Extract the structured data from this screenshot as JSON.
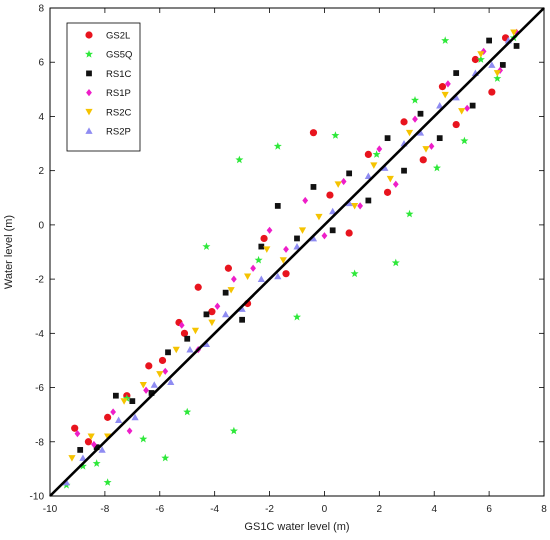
{
  "chart_data": {
    "type": "scatter",
    "title": "",
    "xlabel": "GS1C water level (m)",
    "ylabel": "Water level (m)",
    "xlim": [
      -10,
      8
    ],
    "ylim": [
      -10,
      8
    ],
    "xticks": [
      -10,
      -8,
      -6,
      -4,
      -2,
      0,
      2,
      4,
      6,
      8
    ],
    "yticks": [
      -10,
      -8,
      -6,
      -4,
      -2,
      0,
      2,
      4,
      6,
      8
    ],
    "grid": false,
    "legend_position": "top-left",
    "reference_line": {
      "type": "identity",
      "color": "#000000"
    },
    "series": [
      {
        "name": "GS2L",
        "marker": "circle",
        "color": "#e8141e",
        "points": [
          [
            -9.1,
            -7.5
          ],
          [
            -8.6,
            -8.0
          ],
          [
            -7.9,
            -7.1
          ],
          [
            -7.2,
            -6.3
          ],
          [
            -6.4,
            -5.2
          ],
          [
            -5.9,
            -5.0
          ],
          [
            -5.3,
            -3.6
          ],
          [
            -5.1,
            -4.0
          ],
          [
            -4.6,
            -2.3
          ],
          [
            -4.1,
            -3.2
          ],
          [
            -3.5,
            -1.6
          ],
          [
            -2.8,
            -2.9
          ],
          [
            -2.2,
            -0.5
          ],
          [
            -1.4,
            -1.8
          ],
          [
            -0.4,
            3.4
          ],
          [
            0.2,
            1.1
          ],
          [
            0.9,
            -0.3
          ],
          [
            1.6,
            2.6
          ],
          [
            2.3,
            1.2
          ],
          [
            2.9,
            3.8
          ],
          [
            3.6,
            2.4
          ],
          [
            4.3,
            5.1
          ],
          [
            4.8,
            3.7
          ],
          [
            5.5,
            6.1
          ],
          [
            6.1,
            4.9
          ],
          [
            6.6,
            6.9
          ]
        ]
      },
      {
        "name": "GS5Q",
        "marker": "star",
        "color": "#2ee83a",
        "points": [
          [
            -9.4,
            -9.6
          ],
          [
            -8.8,
            -8.9
          ],
          [
            -8.3,
            -8.8
          ],
          [
            -7.9,
            -9.5
          ],
          [
            -7.2,
            -6.4
          ],
          [
            -6.6,
            -7.9
          ],
          [
            -5.8,
            -8.6
          ],
          [
            -5.0,
            -6.9
          ],
          [
            -4.3,
            -0.8
          ],
          [
            -3.3,
            -7.6
          ],
          [
            -3.1,
            2.4
          ],
          [
            -2.4,
            -1.3
          ],
          [
            -1.7,
            2.9
          ],
          [
            -1.0,
            -3.4
          ],
          [
            0.4,
            3.3
          ],
          [
            1.1,
            -1.8
          ],
          [
            1.9,
            2.6
          ],
          [
            2.6,
            -1.4
          ],
          [
            3.3,
            4.6
          ],
          [
            4.1,
            2.1
          ],
          [
            4.4,
            6.8
          ],
          [
            5.1,
            3.1
          ],
          [
            5.7,
            6.1
          ],
          [
            6.3,
            5.4
          ],
          [
            6.9,
            6.9
          ],
          [
            3.1,
            0.4
          ]
        ]
      },
      {
        "name": "RS1C",
        "marker": "square",
        "color": "#111111",
        "points": [
          [
            -8.9,
            -8.3
          ],
          [
            -8.3,
            -8.2
          ],
          [
            -7.6,
            -6.3
          ],
          [
            -7.0,
            -6.5
          ],
          [
            -6.3,
            -6.2
          ],
          [
            -5.7,
            -4.7
          ],
          [
            -5.0,
            -4.2
          ],
          [
            -4.3,
            -3.3
          ],
          [
            -3.6,
            -2.5
          ],
          [
            -3.0,
            -3.5
          ],
          [
            -2.3,
            -0.8
          ],
          [
            -1.7,
            0.7
          ],
          [
            -1.0,
            -0.5
          ],
          [
            -0.4,
            1.4
          ],
          [
            0.3,
            -0.2
          ],
          [
            0.9,
            1.9
          ],
          [
            1.6,
            0.9
          ],
          [
            2.3,
            3.2
          ],
          [
            2.9,
            2.0
          ],
          [
            3.5,
            4.1
          ],
          [
            4.2,
            3.2
          ],
          [
            4.8,
            5.6
          ],
          [
            5.4,
            4.4
          ],
          [
            6.0,
            6.8
          ],
          [
            6.5,
            5.9
          ],
          [
            7.0,
            6.6
          ]
        ]
      },
      {
        "name": "RS1P",
        "marker": "diamond",
        "color": "#ee1ec8",
        "points": [
          [
            -9.0,
            -7.7
          ],
          [
            -8.4,
            -8.1
          ],
          [
            -7.7,
            -6.9
          ],
          [
            -7.1,
            -7.6
          ],
          [
            -6.5,
            -6.1
          ],
          [
            -5.8,
            -5.4
          ],
          [
            -5.2,
            -3.7
          ],
          [
            -4.6,
            -4.6
          ],
          [
            -3.9,
            -3.0
          ],
          [
            -3.3,
            -2.0
          ],
          [
            -2.6,
            -1.6
          ],
          [
            -2.0,
            -0.2
          ],
          [
            -1.4,
            -0.9
          ],
          [
            -0.7,
            0.9
          ],
          [
            0.0,
            -0.4
          ],
          [
            0.7,
            1.6
          ],
          [
            1.3,
            0.7
          ],
          [
            2.0,
            2.8
          ],
          [
            2.6,
            1.5
          ],
          [
            3.3,
            3.9
          ],
          [
            3.9,
            2.9
          ],
          [
            4.5,
            5.2
          ],
          [
            5.2,
            4.3
          ],
          [
            5.8,
            6.4
          ],
          [
            6.4,
            5.7
          ],
          [
            7.0,
            7.1
          ]
        ]
      },
      {
        "name": "RS2C",
        "marker": "triangle-down",
        "color": "#f5c300",
        "points": [
          [
            -9.2,
            -8.6
          ],
          [
            -8.5,
            -7.8
          ],
          [
            -7.9,
            -7.8
          ],
          [
            -7.3,
            -6.5
          ],
          [
            -6.6,
            -5.9
          ],
          [
            -6.0,
            -5.5
          ],
          [
            -5.4,
            -4.6
          ],
          [
            -4.7,
            -3.9
          ],
          [
            -4.1,
            -3.6
          ],
          [
            -3.4,
            -2.4
          ],
          [
            -2.8,
            -1.9
          ],
          [
            -2.1,
            -0.9
          ],
          [
            -1.5,
            -1.3
          ],
          [
            -0.8,
            -0.2
          ],
          [
            -0.2,
            0.3
          ],
          [
            0.5,
            1.5
          ],
          [
            1.1,
            0.7
          ],
          [
            1.8,
            2.2
          ],
          [
            2.4,
            1.7
          ],
          [
            3.1,
            3.4
          ],
          [
            3.7,
            2.8
          ],
          [
            4.4,
            4.8
          ],
          [
            5.0,
            4.2
          ],
          [
            5.7,
            6.3
          ],
          [
            6.3,
            5.6
          ],
          [
            6.9,
            7.1
          ]
        ]
      },
      {
        "name": "RS2P",
        "marker": "triangle-up",
        "color": "#8f8cf2",
        "points": [
          [
            -9.4,
            -9.5
          ],
          [
            -8.8,
            -8.6
          ],
          [
            -8.1,
            -8.3
          ],
          [
            -7.5,
            -7.2
          ],
          [
            -6.9,
            -7.1
          ],
          [
            -6.2,
            -5.9
          ],
          [
            -5.6,
            -5.8
          ],
          [
            -4.9,
            -4.6
          ],
          [
            -4.3,
            -4.4
          ],
          [
            -3.6,
            -3.3
          ],
          [
            -3.0,
            -3.1
          ],
          [
            -2.3,
            -2.0
          ],
          [
            -1.7,
            -1.9
          ],
          [
            -1.0,
            -0.8
          ],
          [
            -0.4,
            -0.5
          ],
          [
            0.3,
            0.5
          ],
          [
            0.9,
            0.8
          ],
          [
            1.6,
            1.8
          ],
          [
            2.2,
            2.1
          ],
          [
            2.9,
            3.0
          ],
          [
            3.5,
            3.4
          ],
          [
            4.2,
            4.4
          ],
          [
            4.8,
            4.7
          ],
          [
            5.5,
            5.6
          ],
          [
            6.1,
            5.9
          ],
          [
            6.7,
            6.8
          ]
        ]
      }
    ]
  }
}
